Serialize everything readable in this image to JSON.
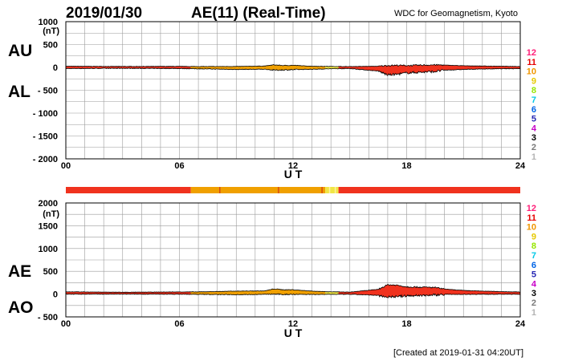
{
  "header": {
    "date": "2019/01/30",
    "title": "AE(11) (Real-Time)",
    "source": "WDC for Geomagnetism, Kyoto"
  },
  "footer": {
    "created": "[Created at 2019-01-31 04:20UT]"
  },
  "legend": {
    "stations": [
      {
        "label": "12",
        "color": "#ff1e78"
      },
      {
        "label": "11",
        "color": "#e60000"
      },
      {
        "label": "10",
        "color": "#f09600"
      },
      {
        "label": "9",
        "color": "#e6c800"
      },
      {
        "label": "8",
        "color": "#96e600"
      },
      {
        "label": "7",
        "color": "#00c8e6"
      },
      {
        "label": "6",
        "color": "#0064e6"
      },
      {
        "label": "5",
        "color": "#2828b4"
      },
      {
        "label": "4",
        "color": "#c800c8"
      },
      {
        "label": "3",
        "color": "#000000"
      },
      {
        "label": "2",
        "color": "#7a7a7a"
      },
      {
        "label": "1",
        "color": "#b4b4b4"
      }
    ]
  },
  "colors": {
    "fill_main": "#f0321e",
    "fill_low": "#f0a000",
    "fill_highlight": "#f0e646",
    "grid": "#9a9a9a"
  },
  "chart_data": [
    {
      "type": "area",
      "panel": "AU/AL",
      "title": "AE(11) (Real-Time)",
      "series": [
        {
          "name": "AU"
        },
        {
          "name": "AL"
        }
      ],
      "unit": "(nT)",
      "xlabel": "U T",
      "x_ticks": [
        "00",
        "06",
        "12",
        "18",
        "24"
      ],
      "xlim": [
        0,
        24
      ],
      "y_ticks": [
        "1000",
        "500",
        "0",
        "- 500",
        "- 1000",
        "- 1500",
        "- 2000"
      ],
      "ylim": [
        -2000,
        1000
      ],
      "x": [
        0,
        3,
        6,
        7,
        9,
        10.5,
        11,
        11.5,
        12,
        13,
        14,
        15,
        16.5,
        17,
        17.5,
        18,
        19,
        19.5,
        20,
        21,
        22,
        23,
        24
      ],
      "AU": [
        25,
        20,
        22,
        18,
        20,
        30,
        55,
        40,
        45,
        25,
        20,
        18,
        25,
        40,
        45,
        40,
        50,
        55,
        50,
        35,
        30,
        25,
        20
      ],
      "AL": [
        -25,
        -20,
        -25,
        -30,
        -45,
        -40,
        -60,
        -55,
        -50,
        -40,
        -30,
        -25,
        -80,
        -165,
        -150,
        -120,
        -100,
        -90,
        -60,
        -45,
        -35,
        -30,
        -25
      ],
      "activity_bands": [
        {
          "from": 0,
          "to": 6.6,
          "level": "main"
        },
        {
          "from": 6.6,
          "to": 13.7,
          "level": "low"
        },
        {
          "from": 13.7,
          "to": 14.4,
          "level": "highlight"
        },
        {
          "from": 14.4,
          "to": 24,
          "level": "main"
        }
      ]
    },
    {
      "type": "area",
      "panel": "AE/AO",
      "series": [
        {
          "name": "AE"
        },
        {
          "name": "AO"
        }
      ],
      "unit": "(nT)",
      "xlabel": "U T",
      "x_ticks": [
        "00",
        "06",
        "12",
        "18",
        "24"
      ],
      "xlim": [
        0,
        24
      ],
      "y_ticks": [
        "2000",
        "1500",
        "1000",
        "500",
        "0",
        "- 500"
      ],
      "ylim": [
        -500,
        2000
      ],
      "x": [
        0,
        3,
        6,
        7,
        9,
        10.5,
        11,
        11.5,
        12,
        13,
        14,
        15,
        16.5,
        17,
        17.5,
        18,
        19,
        19.5,
        20,
        21,
        22,
        23,
        24
      ],
      "AE": [
        50,
        40,
        47,
        48,
        65,
        70,
        115,
        95,
        95,
        65,
        50,
        43,
        105,
        205,
        195,
        160,
        150,
        145,
        110,
        80,
        65,
        55,
        45
      ],
      "AO": [
        0,
        0,
        -2,
        -6,
        -12,
        -5,
        -2,
        -8,
        -3,
        -8,
        -5,
        -4,
        -28,
        -62,
        -52,
        -40,
        -25,
        -18,
        -5,
        -5,
        -3,
        -3,
        -3
      ]
    }
  ]
}
